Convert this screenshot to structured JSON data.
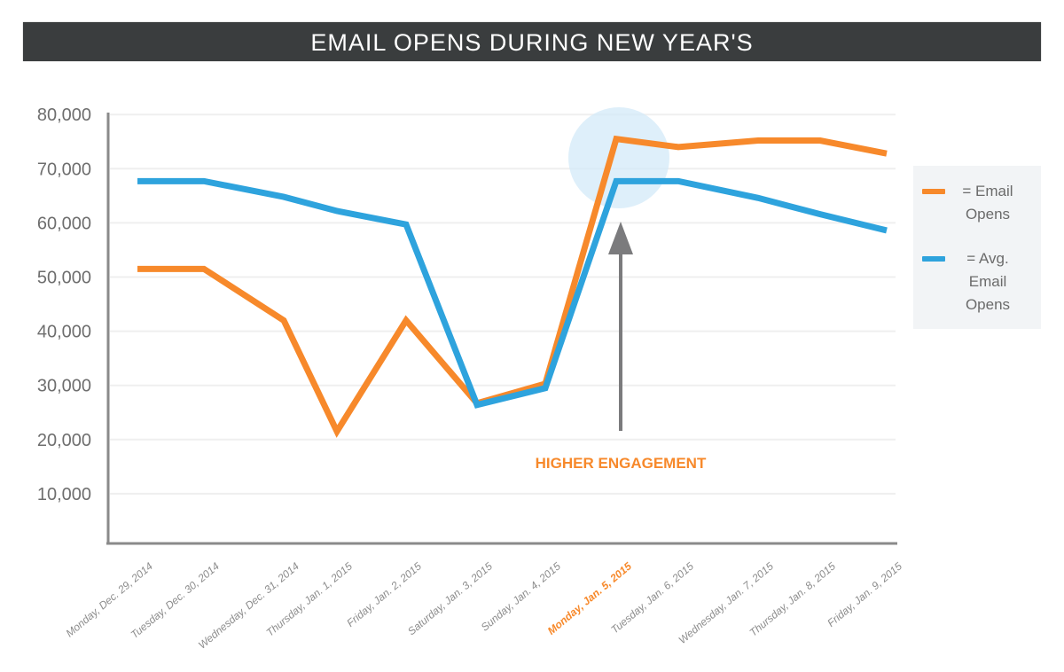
{
  "chart_data": {
    "type": "line",
    "title": "EMAIL OPENS DURING NEW YEAR'S",
    "xlabel": "",
    "ylabel": "",
    "ylim": [
      0,
      80000
    ],
    "yticks": [
      "10,000",
      "20,000",
      "30,000",
      "40,000",
      "50,000",
      "60,000",
      "70,000",
      "80,000"
    ],
    "ytick_values": [
      10000,
      20000,
      30000,
      40000,
      50000,
      60000,
      70000,
      80000
    ],
    "grid": true,
    "legend_position": "right",
    "categories": [
      "Monday, Dec. 29, 2014",
      "Tuesday, Dec. 30, 2014",
      "Wednesday, Dec. 31, 2014",
      "Thursday, Jan. 1, 2015",
      "Friday, Jan. 2, 2015",
      "Saturday, Jan. 3, 2015",
      "Sunday, Jan. 4, 2015",
      "Monday, Jan. 5, 2015",
      "Tuesday, Jan. 6, 2015",
      "Wednesday, Jan. 7, 2015",
      "Thursday, Jan. 8, 2015",
      "Friday, Jan. 9, 2015"
    ],
    "highlighted_category": "Monday, Jan. 5, 2015",
    "series": [
      {
        "name": "= Email Opens",
        "color": "#f7892b",
        "values": [
          51500,
          51500,
          42000,
          21500,
          42000,
          26700,
          30300,
          75500,
          74000,
          75200,
          75200,
          72800
        ]
      },
      {
        "name": "= Avg. Email Opens",
        "color": "#2ea3dd",
        "values": [
          67700,
          67700,
          64800,
          62200,
          59700,
          26400,
          29500,
          67700,
          67700,
          64600,
          61600,
          58600
        ]
      }
    ],
    "annotation": {
      "text": "HIGHER ENGAGEMENT",
      "color": "#f7892b",
      "target": "Monday, Jan. 5, 2015"
    }
  },
  "legend": {
    "email_opens": [
      "= Email",
      "Opens"
    ],
    "avg_email_opens": [
      "= Avg.",
      "Email",
      "Opens"
    ]
  }
}
